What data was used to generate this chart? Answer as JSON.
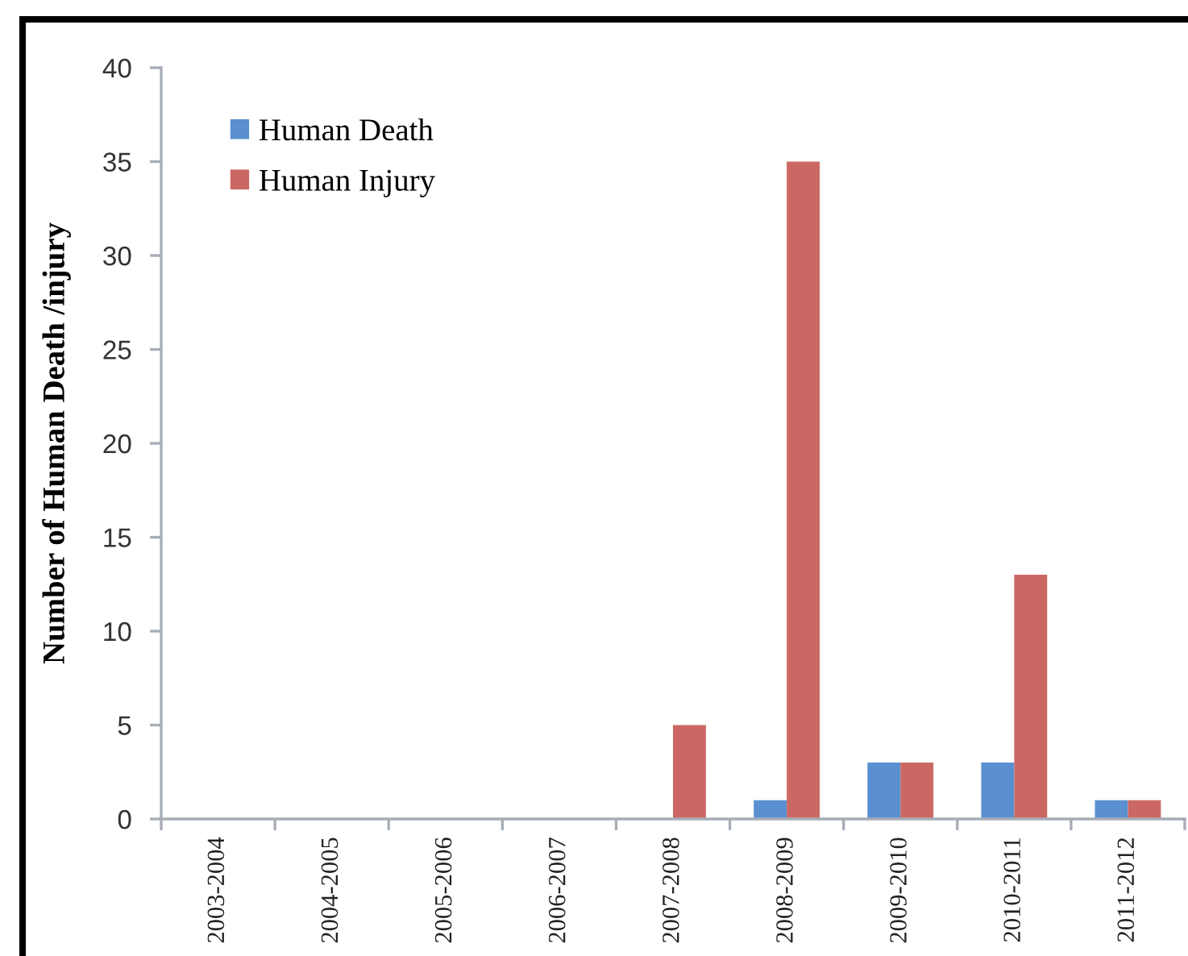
{
  "chart_data": {
    "type": "bar",
    "ylabel": "Number of Human Death /injury",
    "categories": [
      "2003-2004",
      "2004-2005",
      "2005-2006",
      "2006-2007",
      "2007-2008",
      "2008-2009",
      "2009-2010",
      "2010-2011",
      "2011-2012"
    ],
    "series": [
      {
        "name": "Human Death",
        "color": "#5a8fd0",
        "values": [
          0,
          0,
          0,
          0,
          0,
          1,
          3,
          3,
          1
        ]
      },
      {
        "name": "Human Injury",
        "color": "#cc6864",
        "values": [
          0,
          0,
          0,
          0,
          5,
          35,
          3,
          13,
          1
        ]
      }
    ],
    "ylim": [
      0,
      40
    ],
    "yticks": [
      0,
      5,
      10,
      15,
      20,
      25,
      30,
      35,
      40
    ],
    "grid": false,
    "legend": "top left"
  }
}
